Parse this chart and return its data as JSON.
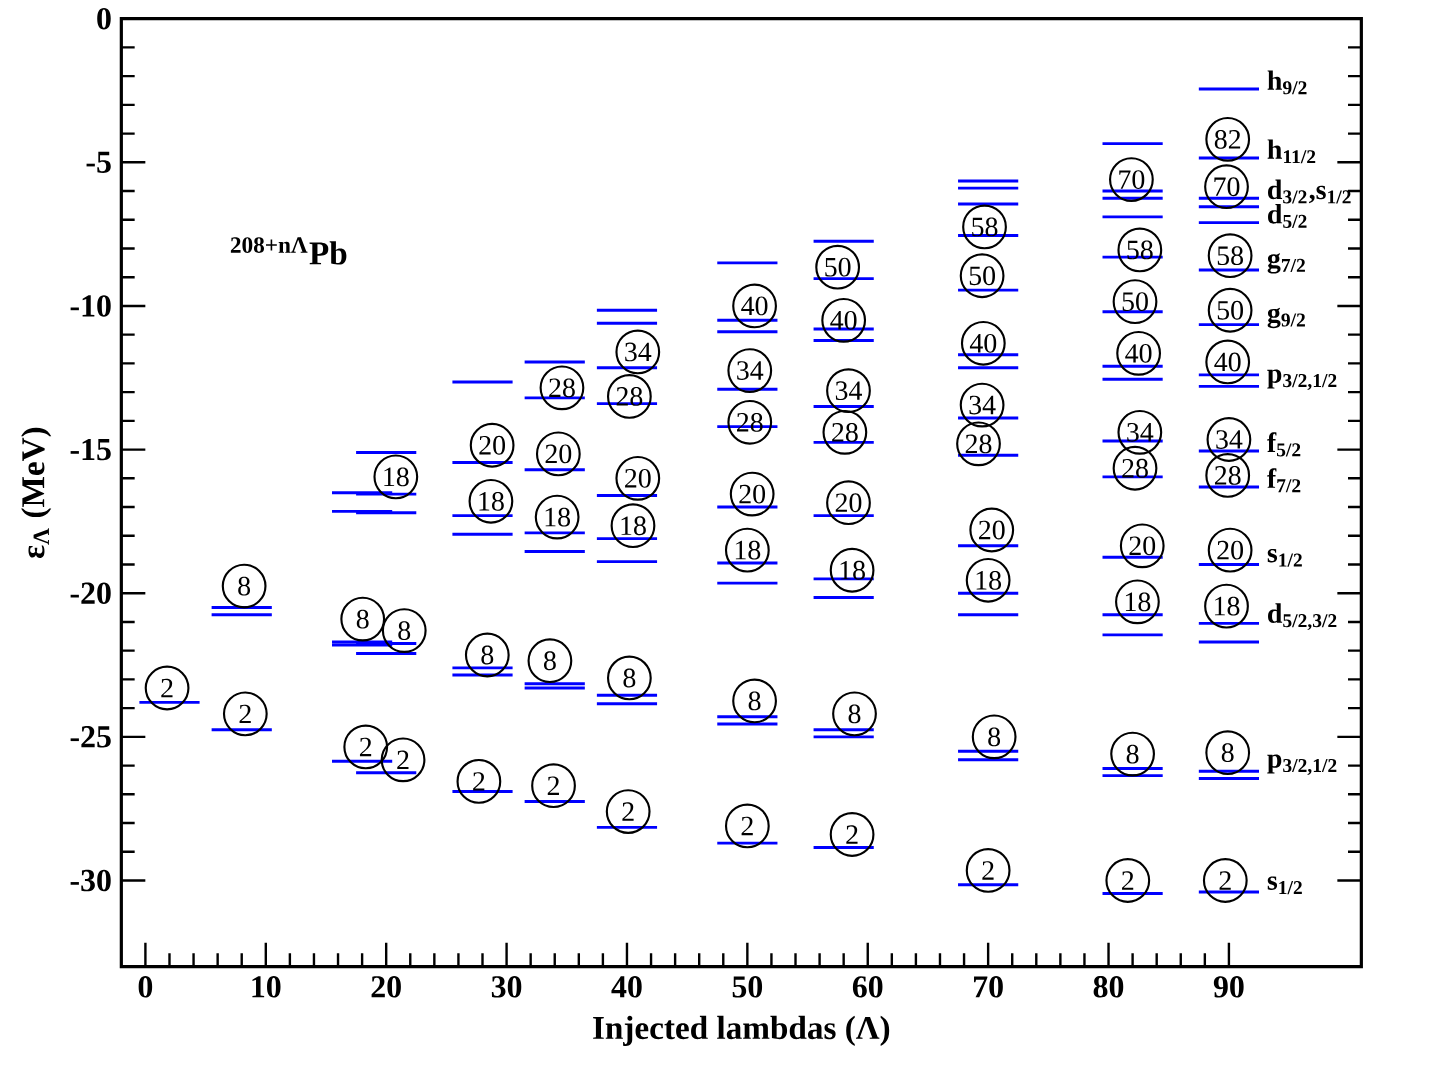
{
  "chart_data": {
    "type": "line",
    "xlabel": "Injected lambdas (Λ)",
    "ylabel": "ε$_{Λ}$ (MeV)",
    "xlim": [
      -2,
      101
    ],
    "ylim": [
      -33,
      0
    ],
    "xticks": [
      0,
      10,
      20,
      30,
      40,
      50,
      60,
      70,
      80,
      90
    ],
    "yticks": [
      0,
      -5,
      -10,
      -15,
      -20,
      -25,
      -30
    ],
    "series": [
      {
        "color": "#0000ff",
        "x": [
          -0.5,
          4.5
        ],
        "values": [
          -23.8,
          -23.8
        ]
      },
      {
        "color": "#0000ff",
        "x": [
          5.5,
          10.5
        ],
        "values": [
          -20.5,
          -20.5
        ]
      },
      {
        "color": "#0000ff",
        "x": [
          5.5,
          10.5
        ],
        "values": [
          -20.75,
          -20.75
        ]
      },
      {
        "color": "#0000ff",
        "x": [
          5.5,
          10.5
        ],
        "values": [
          -24.75,
          -24.75
        ]
      },
      {
        "color": "#0000ff",
        "x": [
          15.5,
          20.5
        ],
        "values": [
          -16.5,
          -16.5
        ]
      },
      {
        "color": "#0000ff",
        "x": [
          15.5,
          20.5
        ],
        "values": [
          -17.15,
          -17.15
        ]
      },
      {
        "color": "#0000ff",
        "x": [
          15.5,
          20.5
        ],
        "values": [
          -21.7,
          -21.7
        ]
      },
      {
        "color": "#0000ff",
        "x": [
          15.5,
          20.5
        ],
        "values": [
          -21.8,
          -21.8
        ]
      },
      {
        "color": "#0000ff",
        "x": [
          15.5,
          20.5
        ],
        "values": [
          -25.85,
          -25.85
        ]
      },
      {
        "color": "#0000ff",
        "x": [
          17.5,
          22.5
        ],
        "values": [
          -15.1,
          -15.1
        ]
      },
      {
        "color": "#0000ff",
        "x": [
          17.5,
          22.5
        ],
        "values": [
          -16.55,
          -16.55
        ]
      },
      {
        "color": "#0000ff",
        "x": [
          17.5,
          22.5
        ],
        "values": [
          -17.2,
          -17.2
        ]
      },
      {
        "color": "#0000ff",
        "x": [
          17.5,
          22.5
        ],
        "values": [
          -21.75,
          -21.75
        ]
      },
      {
        "color": "#0000ff",
        "x": [
          17.5,
          22.5
        ],
        "values": [
          -22.1,
          -22.1
        ]
      },
      {
        "color": "#0000ff",
        "x": [
          17.5,
          22.5
        ],
        "values": [
          -26.25,
          -26.25
        ]
      },
      {
        "color": "#0000ff",
        "x": [
          25.5,
          30.5
        ],
        "values": [
          -12.65,
          -12.65
        ]
      },
      {
        "color": "#0000ff",
        "x": [
          25.5,
          30.5
        ],
        "values": [
          -15.45,
          -15.45
        ]
      },
      {
        "color": "#0000ff",
        "x": [
          25.5,
          30.5
        ],
        "values": [
          -17.3,
          -17.3
        ]
      },
      {
        "color": "#0000ff",
        "x": [
          25.5,
          30.5
        ],
        "values": [
          -17.95,
          -17.95
        ]
      },
      {
        "color": "#0000ff",
        "x": [
          25.5,
          30.5
        ],
        "values": [
          -22.6,
          -22.6
        ]
      },
      {
        "color": "#0000ff",
        "x": [
          25.5,
          30.5
        ],
        "values": [
          -22.85,
          -22.85
        ]
      },
      {
        "color": "#0000ff",
        "x": [
          25.5,
          30.5
        ],
        "values": [
          -26.9,
          -26.9
        ]
      },
      {
        "color": "#0000ff",
        "x": [
          31.5,
          36.5
        ],
        "values": [
          -11.95,
          -11.95
        ]
      },
      {
        "color": "#0000ff",
        "x": [
          31.5,
          36.5
        ],
        "values": [
          -13.2,
          -13.2
        ]
      },
      {
        "color": "#0000ff",
        "x": [
          31.5,
          36.5
        ],
        "values": [
          -15.7,
          -15.7
        ]
      },
      {
        "color": "#0000ff",
        "x": [
          31.5,
          36.5
        ],
        "values": [
          -17.9,
          -17.9
        ]
      },
      {
        "color": "#0000ff",
        "x": [
          31.5,
          36.5
        ],
        "values": [
          -18.55,
          -18.55
        ]
      },
      {
        "color": "#0000ff",
        "x": [
          31.5,
          36.5
        ],
        "values": [
          -23.15,
          -23.15
        ]
      },
      {
        "color": "#0000ff",
        "x": [
          31.5,
          36.5
        ],
        "values": [
          -23.3,
          -23.3
        ]
      },
      {
        "color": "#0000ff",
        "x": [
          31.5,
          36.5
        ],
        "values": [
          -27.25,
          -27.25
        ]
      },
      {
        "color": "#0000ff",
        "x": [
          37.5,
          42.5
        ],
        "values": [
          -10.15,
          -10.15
        ]
      },
      {
        "color": "#0000ff",
        "x": [
          37.5,
          42.5
        ],
        "values": [
          -10.6,
          -10.6
        ]
      },
      {
        "color": "#0000ff",
        "x": [
          37.5,
          42.5
        ],
        "values": [
          -12.15,
          -12.15
        ]
      },
      {
        "color": "#0000ff",
        "x": [
          37.5,
          42.5
        ],
        "values": [
          -13.4,
          -13.4
        ]
      },
      {
        "color": "#0000ff",
        "x": [
          37.5,
          42.5
        ],
        "values": [
          -16.6,
          -16.6
        ]
      },
      {
        "color": "#0000ff",
        "x": [
          37.5,
          42.5
        ],
        "values": [
          -18.1,
          -18.1
        ]
      },
      {
        "color": "#0000ff",
        "x": [
          37.5,
          42.5
        ],
        "values": [
          -18.9,
          -18.9
        ]
      },
      {
        "color": "#0000ff",
        "x": [
          37.5,
          42.5
        ],
        "values": [
          -23.55,
          -23.55
        ]
      },
      {
        "color": "#0000ff",
        "x": [
          37.5,
          42.5
        ],
        "values": [
          -23.85,
          -23.85
        ]
      },
      {
        "color": "#0000ff",
        "x": [
          37.5,
          42.5
        ],
        "values": [
          -28.15,
          -28.15
        ]
      },
      {
        "color": "#0000ff",
        "x": [
          47.5,
          52.5
        ],
        "values": [
          -8.5,
          -8.5
        ]
      },
      {
        "color": "#0000ff",
        "x": [
          47.5,
          52.5
        ],
        "values": [
          -10.5,
          -10.5
        ]
      },
      {
        "color": "#0000ff",
        "x": [
          47.5,
          52.5
        ],
        "values": [
          -10.9,
          -10.9
        ]
      },
      {
        "color": "#0000ff",
        "x": [
          47.5,
          52.5
        ],
        "values": [
          -12.9,
          -12.9
        ]
      },
      {
        "color": "#0000ff",
        "x": [
          47.5,
          52.5
        ],
        "values": [
          -14.2,
          -14.2
        ]
      },
      {
        "color": "#0000ff",
        "x": [
          47.5,
          52.5
        ],
        "values": [
          -17.0,
          -17.0
        ]
      },
      {
        "color": "#0000ff",
        "x": [
          47.5,
          52.5
        ],
        "values": [
          -18.95,
          -18.95
        ]
      },
      {
        "color": "#0000ff",
        "x": [
          47.5,
          52.5
        ],
        "values": [
          -19.65,
          -19.65
        ]
      },
      {
        "color": "#0000ff",
        "x": [
          47.5,
          52.5
        ],
        "values": [
          -24.3,
          -24.3
        ]
      },
      {
        "color": "#0000ff",
        "x": [
          47.5,
          52.5
        ],
        "values": [
          -24.55,
          -24.55
        ]
      },
      {
        "color": "#0000ff",
        "x": [
          47.5,
          52.5
        ],
        "values": [
          -28.7,
          -28.7
        ]
      },
      {
        "color": "#0000ff",
        "x": [
          55.5,
          60.5
        ],
        "values": [
          -7.75,
          -7.75
        ]
      },
      {
        "color": "#0000ff",
        "x": [
          55.5,
          60.5
        ],
        "values": [
          -9.05,
          -9.05
        ]
      },
      {
        "color": "#0000ff",
        "x": [
          55.5,
          60.5
        ],
        "values": [
          -10.8,
          -10.8
        ]
      },
      {
        "color": "#0000ff",
        "x": [
          55.5,
          60.5
        ],
        "values": [
          -11.2,
          -11.2
        ]
      },
      {
        "color": "#0000ff",
        "x": [
          55.5,
          60.5
        ],
        "values": [
          -13.5,
          -13.5
        ]
      },
      {
        "color": "#0000ff",
        "x": [
          55.5,
          60.5
        ],
        "values": [
          -14.75,
          -14.75
        ]
      },
      {
        "color": "#0000ff",
        "x": [
          55.5,
          60.5
        ],
        "values": [
          -17.3,
          -17.3
        ]
      },
      {
        "color": "#0000ff",
        "x": [
          55.5,
          60.5
        ],
        "values": [
          -19.5,
          -19.5
        ]
      },
      {
        "color": "#0000ff",
        "x": [
          55.5,
          60.5
        ],
        "values": [
          -20.15,
          -20.15
        ]
      },
      {
        "color": "#0000ff",
        "x": [
          55.5,
          60.5
        ],
        "values": [
          -24.75,
          -24.75
        ]
      },
      {
        "color": "#0000ff",
        "x": [
          55.5,
          60.5
        ],
        "values": [
          -25.0,
          -25.0
        ]
      },
      {
        "color": "#0000ff",
        "x": [
          55.5,
          60.5
        ],
        "values": [
          -28.85,
          -28.85
        ]
      },
      {
        "color": "#0000ff",
        "x": [
          67.5,
          72.5
        ],
        "values": [
          -5.65,
          -5.65
        ]
      },
      {
        "color": "#0000ff",
        "x": [
          67.5,
          72.5
        ],
        "values": [
          -5.9,
          -5.9
        ]
      },
      {
        "color": "#0000ff",
        "x": [
          67.5,
          72.5
        ],
        "values": [
          -6.45,
          -6.45
        ]
      },
      {
        "color": "#0000ff",
        "x": [
          67.5,
          72.5
        ],
        "values": [
          -7.55,
          -7.55
        ]
      },
      {
        "color": "#0000ff",
        "x": [
          67.5,
          72.5
        ],
        "values": [
          -9.45,
          -9.45
        ]
      },
      {
        "color": "#0000ff",
        "x": [
          67.5,
          72.5
        ],
        "values": [
          -11.7,
          -11.7
        ]
      },
      {
        "color": "#0000ff",
        "x": [
          67.5,
          72.5
        ],
        "values": [
          -12.15,
          -12.15
        ]
      },
      {
        "color": "#0000ff",
        "x": [
          67.5,
          72.5
        ],
        "values": [
          -13.9,
          -13.9
        ]
      },
      {
        "color": "#0000ff",
        "x": [
          67.5,
          72.5
        ],
        "values": [
          -15.2,
          -15.2
        ]
      },
      {
        "color": "#0000ff",
        "x": [
          67.5,
          72.5
        ],
        "values": [
          -18.35,
          -18.35
        ]
      },
      {
        "color": "#0000ff",
        "x": [
          67.5,
          72.5
        ],
        "values": [
          -20.0,
          -20.0
        ]
      },
      {
        "color": "#0000ff",
        "x": [
          67.5,
          72.5
        ],
        "values": [
          -20.75,
          -20.75
        ]
      },
      {
        "color": "#0000ff",
        "x": [
          67.5,
          72.5
        ],
        "values": [
          -25.5,
          -25.5
        ]
      },
      {
        "color": "#0000ff",
        "x": [
          67.5,
          72.5
        ],
        "values": [
          -25.8,
          -25.8
        ]
      },
      {
        "color": "#0000ff",
        "x": [
          67.5,
          72.5
        ],
        "values": [
          -30.15,
          -30.15
        ]
      },
      {
        "color": "#0000ff",
        "x": [
          79.5,
          84.5
        ],
        "values": [
          -4.35,
          -4.35
        ]
      },
      {
        "color": "#0000ff",
        "x": [
          79.5,
          84.5
        ],
        "values": [
          -6.0,
          -6.0
        ]
      },
      {
        "color": "#0000ff",
        "x": [
          79.5,
          84.5
        ],
        "values": [
          -6.25,
          -6.25
        ]
      },
      {
        "color": "#0000ff",
        "x": [
          79.5,
          84.5
        ],
        "values": [
          -6.9,
          -6.9
        ]
      },
      {
        "color": "#0000ff",
        "x": [
          79.5,
          84.5
        ],
        "values": [
          -8.3,
          -8.3
        ]
      },
      {
        "color": "#0000ff",
        "x": [
          79.5,
          84.5
        ],
        "values": [
          -10.2,
          -10.2
        ]
      },
      {
        "color": "#0000ff",
        "x": [
          79.5,
          84.5
        ],
        "values": [
          -12.1,
          -12.1
        ]
      },
      {
        "color": "#0000ff",
        "x": [
          79.5,
          84.5
        ],
        "values": [
          -12.55,
          -12.55
        ]
      },
      {
        "color": "#0000ff",
        "x": [
          79.5,
          84.5
        ],
        "values": [
          -14.7,
          -14.7
        ]
      },
      {
        "color": "#0000ff",
        "x": [
          79.5,
          84.5
        ],
        "values": [
          -15.95,
          -15.95
        ]
      },
      {
        "color": "#0000ff",
        "x": [
          79.5,
          84.5
        ],
        "values": [
          -18.75,
          -18.75
        ]
      },
      {
        "color": "#0000ff",
        "x": [
          79.5,
          84.5
        ],
        "values": [
          -20.75,
          -20.75
        ]
      },
      {
        "color": "#0000ff",
        "x": [
          79.5,
          84.5
        ],
        "values": [
          -21.45,
          -21.45
        ]
      },
      {
        "color": "#0000ff",
        "x": [
          79.5,
          84.5
        ],
        "values": [
          -26.1,
          -26.1
        ]
      },
      {
        "color": "#0000ff",
        "x": [
          79.5,
          84.5
        ],
        "values": [
          -26.35,
          -26.35
        ]
      },
      {
        "color": "#0000ff",
        "x": [
          79.5,
          84.5
        ],
        "values": [
          -30.45,
          -30.45
        ]
      },
      {
        "color": "#0000ff",
        "x": [
          87.5,
          92.5
        ],
        "values": [
          -2.45,
          -2.45
        ]
      },
      {
        "color": "#0000ff",
        "x": [
          87.5,
          92.5
        ],
        "values": [
          -4.85,
          -4.85
        ]
      },
      {
        "color": "#0000ff",
        "x": [
          87.5,
          92.5
        ],
        "values": [
          -6.25,
          -6.25
        ]
      },
      {
        "color": "#0000ff",
        "x": [
          87.5,
          92.5
        ],
        "values": [
          -6.55,
          -6.55
        ]
      },
      {
        "color": "#0000ff",
        "x": [
          87.5,
          92.5
        ],
        "values": [
          -7.1,
          -7.1
        ]
      },
      {
        "color": "#0000ff",
        "x": [
          87.5,
          92.5
        ],
        "values": [
          -8.75,
          -8.75
        ]
      },
      {
        "color": "#0000ff",
        "x": [
          87.5,
          92.5
        ],
        "values": [
          -10.65,
          -10.65
        ]
      },
      {
        "color": "#0000ff",
        "x": [
          87.5,
          92.5
        ],
        "values": [
          -12.4,
          -12.4
        ]
      },
      {
        "color": "#0000ff",
        "x": [
          87.5,
          92.5
        ],
        "values": [
          -12.8,
          -12.8
        ]
      },
      {
        "color": "#0000ff",
        "x": [
          87.5,
          92.5
        ],
        "values": [
          -15.05,
          -15.05
        ]
      },
      {
        "color": "#0000ff",
        "x": [
          87.5,
          92.5
        ],
        "values": [
          -16.3,
          -16.3
        ]
      },
      {
        "color": "#0000ff",
        "x": [
          87.5,
          92.5
        ],
        "values": [
          -19.0,
          -19.0
        ]
      },
      {
        "color": "#0000ff",
        "x": [
          87.5,
          92.5
        ],
        "values": [
          -21.05,
          -21.05
        ]
      },
      {
        "color": "#0000ff",
        "x": [
          87.5,
          92.5
        ],
        "values": [
          -21.7,
          -21.7
        ]
      },
      {
        "color": "#0000ff",
        "x": [
          87.5,
          92.5
        ],
        "values": [
          -26.2,
          -26.2
        ]
      },
      {
        "color": "#0000ff",
        "x": [
          87.5,
          92.5
        ],
        "values": [
          -26.45,
          -26.45
        ]
      },
      {
        "color": "#0000ff",
        "x": [
          87.5,
          92.5
        ],
        "values": [
          -30.4,
          -30.4
        ]
      }
    ],
    "annotations": [
      "$^{208+nΛ}$Pb",
      {
        "text": "2",
        "x": 1.8,
        "y": -23.3
      },
      {
        "text": "8",
        "x": 8.2,
        "y": -19.75
      },
      {
        "text": "2",
        "x": 8.3,
        "y": -24.2
      },
      {
        "text": "8",
        "x": 18.05,
        "y": -20.9
      },
      {
        "text": "2",
        "x": 18.3,
        "y": -25.35
      },
      {
        "text": "18",
        "x": 20.8,
        "y": -15.95
      },
      {
        "text": "8",
        "x": 21.5,
        "y": -21.3
      },
      {
        "text": "2",
        "x": 21.4,
        "y": -25.8
      },
      {
        "text": "20",
        "x": 28.8,
        "y": -14.85
      },
      {
        "text": "18",
        "x": 28.7,
        "y": -16.8
      },
      {
        "text": "8",
        "x": 28.4,
        "y": -22.15
      },
      {
        "text": "2",
        "x": 27.7,
        "y": -26.55
      },
      {
        "text": "28",
        "x": 34.6,
        "y": -12.85
      },
      {
        "text": "20",
        "x": 34.3,
        "y": -15.15
      },
      {
        "text": "18",
        "x": 34.2,
        "y": -17.35
      },
      {
        "text": "8",
        "x": 33.6,
        "y": -22.35
      },
      {
        "text": "2",
        "x": 33.9,
        "y": -26.7
      },
      {
        "text": "34",
        "x": 40.9,
        "y": -11.6
      },
      {
        "text": "28",
        "x": 40.2,
        "y": -13.15
      },
      {
        "text": "20",
        "x": 40.9,
        "y": -16.0
      },
      {
        "text": "18",
        "x": 40.5,
        "y": -17.65
      },
      {
        "text": "8",
        "x": 40.2,
        "y": -22.95
      },
      {
        "text": "2",
        "x": 40.1,
        "y": -27.6
      },
      {
        "text": "40",
        "x": 50.6,
        "y": -10.0
      },
      {
        "text": "34",
        "x": 50.2,
        "y": -12.25
      },
      {
        "text": "28",
        "x": 50.2,
        "y": -14.05
      },
      {
        "text": "20",
        "x": 50.4,
        "y": -16.55
      },
      {
        "text": "18",
        "x": 50.0,
        "y": -18.5
      },
      {
        "text": "8",
        "x": 50.6,
        "y": -23.75
      },
      {
        "text": "2",
        "x": 50.0,
        "y": -28.1
      },
      {
        "text": "50",
        "x": 57.5,
        "y": -8.65
      },
      {
        "text": "40",
        "x": 58.0,
        "y": -10.5
      },
      {
        "text": "34",
        "x": 58.4,
        "y": -12.95
      },
      {
        "text": "28",
        "x": 58.1,
        "y": -14.4
      },
      {
        "text": "20",
        "x": 58.4,
        "y": -16.85
      },
      {
        "text": "18",
        "x": 58.7,
        "y": -19.2
      },
      {
        "text": "8",
        "x": 58.9,
        "y": -24.2
      },
      {
        "text": "2",
        "x": 58.7,
        "y": -28.4
      },
      {
        "text": "58",
        "x": 69.7,
        "y": -7.25
      },
      {
        "text": "50",
        "x": 69.5,
        "y": -8.95
      },
      {
        "text": "40",
        "x": 69.6,
        "y": -11.3
      },
      {
        "text": "34",
        "x": 69.5,
        "y": -13.45
      },
      {
        "text": "28",
        "x": 69.2,
        "y": -14.8
      },
      {
        "text": "20",
        "x": 70.3,
        "y": -17.8
      },
      {
        "text": "18",
        "x": 70.0,
        "y": -19.55
      },
      {
        "text": "8",
        "x": 70.5,
        "y": -25.0
      },
      {
        "text": "2",
        "x": 70.0,
        "y": -29.65
      },
      {
        "text": "70",
        "x": 81.9,
        "y": -5.6
      },
      {
        "text": "58",
        "x": 82.6,
        "y": -8.05
      },
      {
        "text": "50",
        "x": 82.2,
        "y": -9.85
      },
      {
        "text": "40",
        "x": 82.5,
        "y": -11.65
      },
      {
        "text": "34",
        "x": 82.6,
        "y": -14.4
      },
      {
        "text": "28",
        "x": 82.2,
        "y": -15.65
      },
      {
        "text": "20",
        "x": 82.8,
        "y": -18.35
      },
      {
        "text": "18",
        "x": 82.4,
        "y": -20.3
      },
      {
        "text": "8",
        "x": 82.0,
        "y": -25.6
      },
      {
        "text": "2",
        "x": 81.6,
        "y": -30.0
      },
      {
        "text": "82",
        "x": 89.9,
        "y": -4.2
      },
      {
        "text": "70",
        "x": 89.8,
        "y": -5.85
      },
      {
        "text": "58",
        "x": 90.1,
        "y": -8.25
      },
      {
        "text": "50",
        "x": 90.1,
        "y": -10.15
      },
      {
        "text": "40",
        "x": 89.9,
        "y": -11.95
      },
      {
        "text": "34",
        "x": 90.0,
        "y": -14.65
      },
      {
        "text": "28",
        "x": 89.9,
        "y": -15.9
      },
      {
        "text": "20",
        "x": 90.1,
        "y": -18.5
      },
      {
        "text": "18",
        "x": 89.8,
        "y": -20.45
      },
      {
        "text": "8",
        "x": 89.9,
        "y": -25.55
      },
      {
        "text": "2",
        "x": 89.7,
        "y": -30.0
      },
      {
        "text": "h$_{9/2}$",
        "x": 93,
        "y": -2.45
      },
      {
        "text": "h$_{11/2}$",
        "x": 93,
        "y": -4.85
      },
      {
        "text": "d$_{3/2}$,s$_{1/2}$",
        "x": 93,
        "y": -6.25
      },
      {
        "text": "d$_{5/2}$",
        "x": 93,
        "y": -7.1
      },
      {
        "text": "g$_{7/2}$",
        "x": 93,
        "y": -8.75
      },
      {
        "text": "g$_{9/2}$",
        "x": 93,
        "y": -10.65
      },
      {
        "text": "p$_{3/2,1/2}$",
        "x": 93,
        "y": -12.8
      },
      {
        "text": "f$_{5/2}$",
        "x": 93,
        "y": -15.05
      },
      {
        "text": "f$_{7/2}$",
        "x": 93,
        "y": -16.3
      },
      {
        "text": "s$_{1/2}$",
        "x": 93,
        "y": -19.0
      },
      {
        "text": "d$_{5/2,3/2}$",
        "x": 93,
        "y": -21.05
      },
      {
        "text": "p$_{3/2,1/2}$",
        "x": 93,
        "y": -26.2
      },
      {
        "text": "s$_{1/2}$",
        "x": 93,
        "y": -30.4
      }
    ]
  }
}
